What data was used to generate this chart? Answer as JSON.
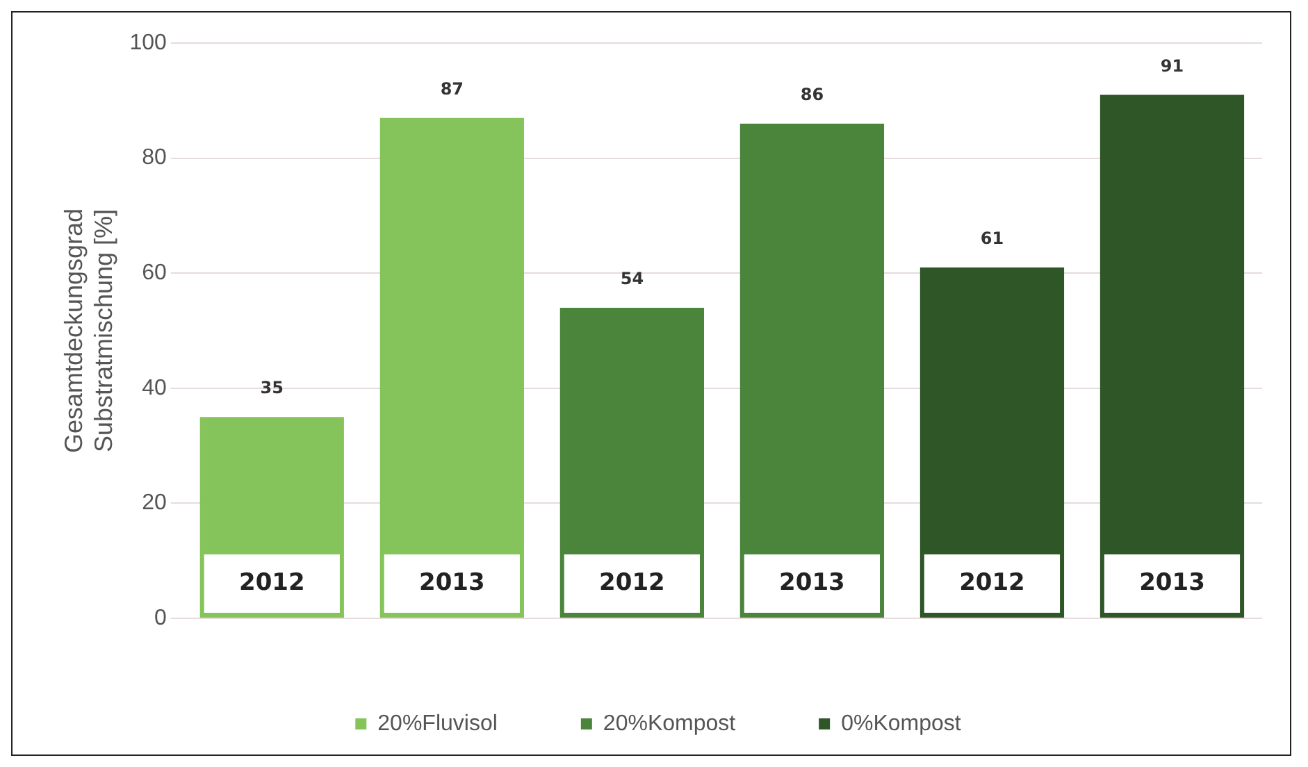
{
  "chart_data": {
    "type": "bar",
    "ylabel": "Gesamtdeckungsgrad Substratmischung [%]",
    "categories": [
      "2012",
      "2013",
      "2012",
      "2013",
      "2012",
      "2013"
    ],
    "series": [
      {
        "name": "20%Fluvisol",
        "color": "#84c45a",
        "values": [
          35,
          87,
          null,
          null,
          null,
          null
        ]
      },
      {
        "name": "20%Kompost",
        "color": "#4b853c",
        "values": [
          null,
          null,
          54,
          86,
          null,
          null
        ]
      },
      {
        "name": "0%Kompost",
        "color": "#2f5627",
        "values": [
          null,
          null,
          null,
          null,
          61,
          91
        ]
      }
    ],
    "ylim": [
      0,
      100
    ],
    "yticks": [
      0,
      20,
      40,
      60,
      80,
      100
    ],
    "grid": "y",
    "legend": "bottom",
    "data_labels": true
  }
}
